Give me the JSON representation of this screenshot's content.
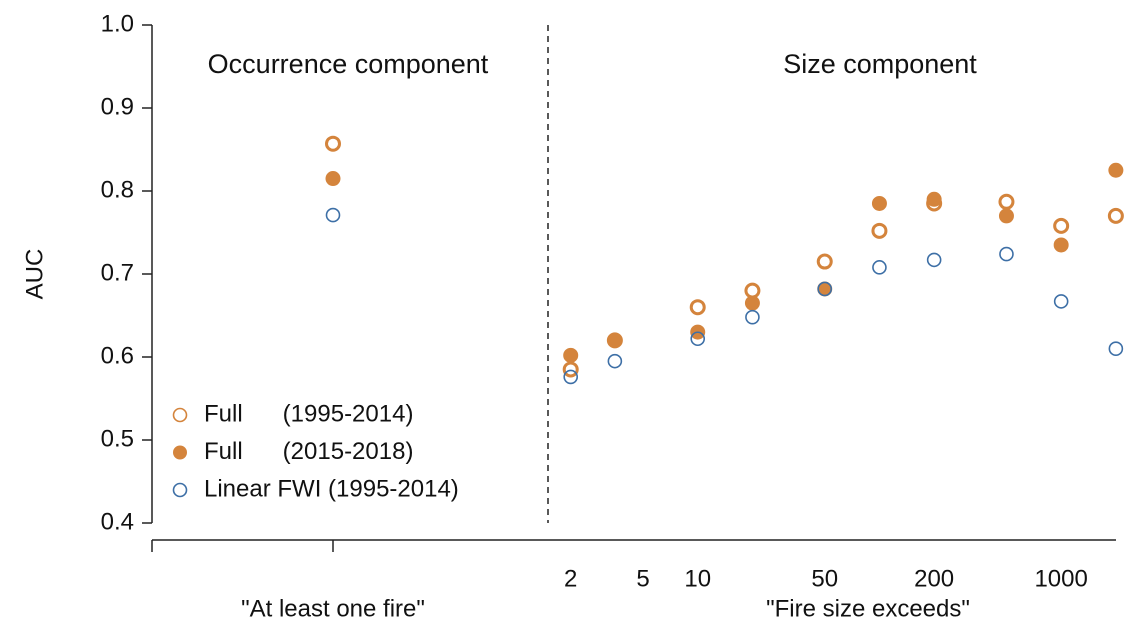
{
  "chart_data": [
    {
      "type": "scatter",
      "title": "Occurrence component",
      "ylabel": "AUC",
      "xlabel": "\"At least one fire\"",
      "categories": [
        null
      ],
      "ylim": [
        0.4,
        1.0
      ],
      "yticks": [
        0.4,
        0.5,
        0.6,
        0.7,
        0.8,
        0.9,
        {
          "value": 1.0,
          "label": "1.0"
        }
      ],
      "legend": "lower left",
      "series": [
        {
          "name": "Full      (1995-2014)",
          "color": "#d4843c",
          "marker": "open",
          "values": [
            0.857
          ]
        },
        {
          "name": "Full      (2015-2018)",
          "color": "#d4843c",
          "marker": "filled",
          "values": [
            0.815
          ]
        },
        {
          "name": "Linear FWI (1995-2014)",
          "color": "#3d6fa6",
          "marker": "open",
          "values": [
            0.771
          ]
        }
      ]
    },
    {
      "type": "scatter",
      "title": "Size component",
      "xlabel": "\"Fire size exceeds\"",
      "log_x": true,
      "xlim": [
        1.5,
        2750
      ],
      "xticks": [
        2,
        5,
        10,
        50,
        200,
        1000
      ],
      "ylim": [
        0.4,
        1.0
      ],
      "x": [
        2,
        3.5,
        10,
        20,
        50,
        100,
        200,
        500,
        1000,
        2000
      ],
      "series": [
        {
          "color": "#d4843c",
          "marker": "open",
          "values": [
            0.585,
            0.62,
            0.66,
            0.68,
            0.715,
            0.752,
            0.785,
            0.787,
            0.758,
            0.77
          ]
        },
        {
          "color": "#d4843c",
          "marker": "filled",
          "values": [
            0.602,
            0.62,
            0.63,
            0.665,
            0.682,
            0.785,
            0.79,
            0.77,
            0.735,
            0.825
          ]
        },
        {
          "color": "#3d6fa6",
          "marker": "open",
          "values": [
            0.576,
            0.595,
            0.622,
            0.648,
            0.682,
            0.708,
            0.717,
            0.724,
            0.667,
            0.61
          ]
        }
      ]
    }
  ]
}
